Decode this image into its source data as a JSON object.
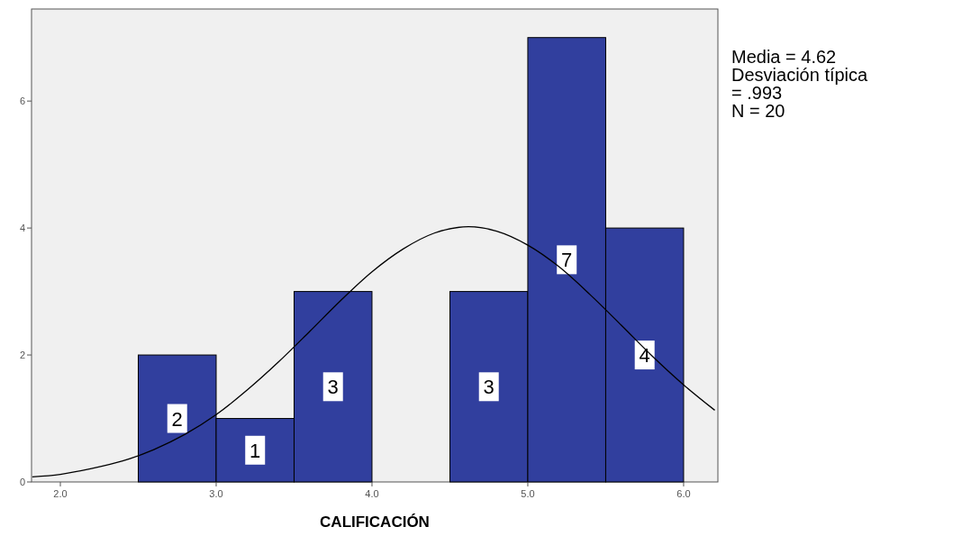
{
  "chart_data": {
    "type": "histogram",
    "xlabel": "CALIFICACIÓN",
    "bins": [
      2.5,
      3.0,
      3.5,
      4.0,
      4.5,
      5.0,
      5.5,
      6.0
    ],
    "values": [
      2,
      1,
      3,
      0,
      3,
      7,
      4
    ],
    "value_labels": [
      "2",
      "1",
      "3",
      null,
      "3",
      "7",
      "4"
    ],
    "color": "#313f9e",
    "series": [
      {
        "type": "line",
        "color": "#000000",
        "x": [
          1.82,
          2.0,
          2.2,
          2.4,
          2.6,
          2.8,
          3.0,
          3.2,
          3.4,
          3.6,
          3.8,
          4.0,
          4.2,
          4.4,
          4.62,
          4.8,
          5.0,
          5.2,
          5.4,
          5.6,
          5.8,
          6.0,
          6.2
        ],
        "values": [
          0.08,
          0.12,
          0.21,
          0.33,
          0.51,
          0.75,
          1.06,
          1.45,
          1.89,
          2.37,
          2.86,
          3.31,
          3.67,
          3.92,
          4.02,
          3.95,
          3.73,
          3.39,
          2.95,
          2.47,
          1.98,
          1.53,
          1.13
        ]
      }
    ],
    "xlim": [
      1.815,
      6.22
    ],
    "xticks": [
      {
        "value": 2,
        "label": "2.0"
      },
      {
        "value": 3,
        "label": "3.0"
      },
      {
        "value": 4,
        "label": "4.0"
      },
      {
        "value": 5,
        "label": "5.0"
      },
      {
        "value": 6,
        "label": "6.0"
      }
    ],
    "ylim": [
      0,
      7.45
    ],
    "yticks": [
      0,
      2,
      4,
      6
    ],
    "grid": false,
    "annotations": [
      "Media = 4.62",
      "Desviación típica",
      "= .993",
      "N = 20"
    ]
  }
}
